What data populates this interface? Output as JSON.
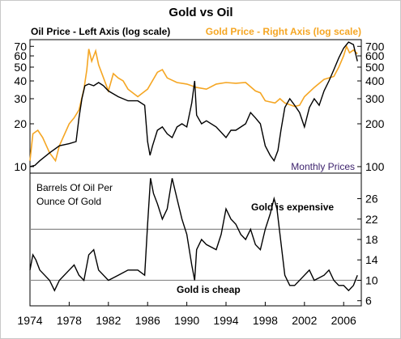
{
  "chart_data": {
    "type": "line",
    "title": "Gold vs Oil",
    "note": "Monthly Prices",
    "x_ticks": [
      "1974",
      "1978",
      "1982",
      "1986",
      "1990",
      "1994",
      "1998",
      "2002",
      "2006"
    ],
    "colors": {
      "oil": "#000000",
      "gold": "#f5a623",
      "note": "#3a1f6b",
      "frame": "#000000"
    },
    "top_panel": {
      "scale": "log",
      "left_axis": {
        "label": "Oil Price - Left Axis (log scale)",
        "ticks": [
          10,
          20,
          30,
          40,
          50,
          60,
          70
        ],
        "ylim": [
          9,
          78
        ]
      },
      "right_axis": {
        "label": "Gold Price - Right Axis (log scale)",
        "ticks": [
          100,
          200,
          300,
          400,
          500,
          600,
          700
        ],
        "ylim": [
          90,
          780
        ]
      },
      "series": [
        {
          "name": "Oil Price - Left Axis (log scale)",
          "color": "#000000",
          "x": [
            1974.0,
            1974.5,
            1975.0,
            1976.0,
            1977.0,
            1978.0,
            1978.7,
            1979.0,
            1979.3,
            1979.6,
            1980.0,
            1980.5,
            1981.0,
            1981.5,
            1982.0,
            1983.0,
            1984.0,
            1985.0,
            1985.7,
            1986.0,
            1986.25,
            1986.5,
            1987.0,
            1987.5,
            1988.0,
            1988.5,
            1989.0,
            1989.5,
            1990.0,
            1990.5,
            1990.8,
            1991.0,
            1991.5,
            1992.0,
            1993.0,
            1994.0,
            1994.5,
            1995.0,
            1996.0,
            1996.5,
            1997.0,
            1997.5,
            1998.0,
            1998.5,
            1998.9,
            1999.3,
            1999.6,
            2000.0,
            2000.5,
            2001.0,
            2001.5,
            2002.0,
            2002.5,
            2003.0,
            2003.5,
            2004.0,
            2004.5,
            2005.0,
            2005.5,
            2006.0,
            2006.5,
            2007.0,
            2007.4
          ],
          "values": [
            10,
            10.2,
            11,
            12.5,
            14,
            14.5,
            15,
            22,
            30,
            37,
            38,
            37,
            39,
            37,
            34,
            31,
            29,
            29,
            27,
            15,
            12,
            14,
            18,
            19,
            17,
            16,
            19,
            20,
            19,
            28,
            40,
            23,
            20,
            21,
            19,
            16,
            18,
            18,
            20,
            24,
            22,
            20,
            14,
            12,
            11,
            13,
            18,
            26,
            30,
            27,
            24,
            19,
            26,
            30,
            27,
            34,
            40,
            48,
            58,
            68,
            75,
            72,
            55
          ]
        },
        {
          "name": "Gold Price - Right Axis (log scale)",
          "color": "#f5a623",
          "x": [
            1974.0,
            1974.3,
            1974.8,
            1975.3,
            1976.0,
            1976.6,
            1977.0,
            1978.0,
            1978.5,
            1979.0,
            1979.5,
            1979.8,
            1980.0,
            1980.3,
            1980.7,
            1981.0,
            1981.5,
            1982.0,
            1982.5,
            1983.0,
            1983.5,
            1984.0,
            1985.0,
            1985.5,
            1986.0,
            1987.0,
            1987.5,
            1988.0,
            1989.0,
            1990.0,
            1991.0,
            1992.0,
            1993.0,
            1994.0,
            1995.0,
            1996.0,
            1997.0,
            1997.5,
            1998.0,
            1999.0,
            1999.5,
            2000.0,
            2001.0,
            2001.5,
            2002.0,
            2003.0,
            2004.0,
            2005.0,
            2005.5,
            2006.0,
            2006.3,
            2006.6,
            2007.0,
            2007.4
          ],
          "values": [
            110,
            170,
            180,
            160,
            125,
            110,
            140,
            200,
            220,
            250,
            350,
            480,
            670,
            550,
            650,
            520,
            420,
            340,
            450,
            420,
            400,
            350,
            310,
            330,
            350,
            460,
            480,
            420,
            390,
            380,
            360,
            350,
            380,
            390,
            385,
            390,
            340,
            330,
            290,
            280,
            300,
            280,
            265,
            270,
            310,
            360,
            410,
            430,
            500,
            600,
            700,
            630,
            660,
            620
          ]
        }
      ]
    },
    "bottom_panel": {
      "label_lines": [
        "Barrels Of Oil Per",
        "Ounce Of Gold"
      ],
      "annotation_high": "Gold is expensive",
      "annotation_low": "Gold is cheap",
      "ticks": [
        6,
        10,
        14,
        18,
        22,
        26
      ],
      "ylim": [
        5,
        31
      ],
      "reference_lines": [
        10,
        20
      ],
      "series": [
        {
          "name": "Barrels Of Oil Per Ounce Of Gold",
          "color": "#000000",
          "x": [
            1974.0,
            1974.3,
            1974.6,
            1975.0,
            1975.5,
            1976.0,
            1976.5,
            1977.0,
            1978.0,
            1978.5,
            1979.0,
            1979.5,
            1980.0,
            1980.5,
            1981.0,
            1982.0,
            1983.0,
            1984.0,
            1985.0,
            1985.7,
            1986.0,
            1986.3,
            1986.6,
            1987.0,
            1987.5,
            1988.0,
            1988.5,
            1989.0,
            1989.5,
            1990.0,
            1990.5,
            1990.8,
            1991.0,
            1991.5,
            1992.0,
            1993.0,
            1993.5,
            1994.0,
            1994.5,
            1995.0,
            1995.5,
            1996.0,
            1996.5,
            1997.0,
            1997.5,
            1998.0,
            1998.5,
            1998.9,
            1999.2,
            1999.5,
            2000.0,
            2000.5,
            2001.0,
            2002.0,
            2002.5,
            2003.0,
            2004.0,
            2004.5,
            2005.0,
            2005.5,
            2006.0,
            2006.5,
            2007.0,
            2007.4
          ],
          "values": [
            12,
            15,
            14,
            12,
            11,
            10,
            8,
            10,
            12,
            13,
            11,
            10,
            15,
            16,
            12,
            10,
            11,
            12,
            12,
            11,
            21,
            30,
            27,
            25,
            22,
            24,
            30,
            26,
            22,
            19,
            13,
            10,
            16,
            18,
            17,
            16,
            19,
            24,
            22,
            21,
            19,
            18,
            20,
            17,
            16,
            20,
            23,
            26,
            24,
            19,
            11,
            9,
            9,
            11,
            12,
            10,
            11,
            12,
            10,
            9,
            9,
            8,
            9,
            11
          ]
        }
      ]
    }
  }
}
